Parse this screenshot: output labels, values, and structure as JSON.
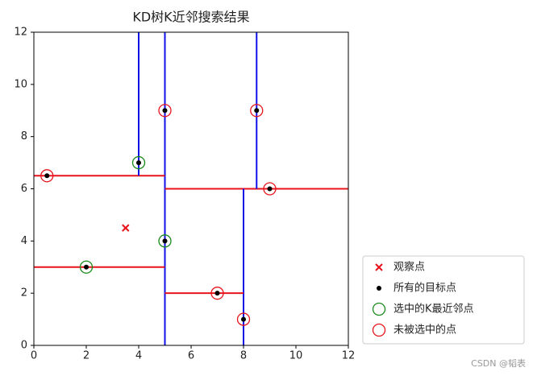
{
  "chart_data": {
    "type": "scatter",
    "title": "KD树K近邻搜索结果",
    "xlim": [
      0,
      12
    ],
    "ylim": [
      0,
      12
    ],
    "xticks": [
      0,
      2,
      4,
      6,
      8,
      10,
      12
    ],
    "yticks": [
      0,
      2,
      4,
      6,
      8,
      10,
      12
    ],
    "legend": "outside-lower-right",
    "series": [
      {
        "name": "观察点",
        "color": "#e8141c",
        "marker": "x",
        "x": [
          3.5
        ],
        "y": [
          4.5
        ]
      },
      {
        "name": "所有的目标点",
        "color": "#000000",
        "marker": "dot",
        "x": [
          0.5,
          2,
          4,
          5,
          5,
          7,
          8,
          8.5,
          9
        ],
        "y": [
          6.5,
          3,
          7,
          9,
          4,
          2,
          1,
          9,
          6
        ]
      },
      {
        "name": "选中的K最近邻点",
        "color": "#1a8a1a",
        "marker": "circle",
        "x": [
          4,
          2,
          5
        ],
        "y": [
          7,
          3,
          4
        ]
      },
      {
        "name": "未被选中的点",
        "color": "#e8141c",
        "marker": "circle",
        "x": [
          0.5,
          5,
          8.5,
          9,
          7,
          8
        ],
        "y": [
          6.5,
          9,
          9,
          6,
          2,
          1
        ]
      }
    ],
    "segments": [
      {
        "color": "#1010e8",
        "x": [
          5,
          5
        ],
        "y": [
          0,
          12
        ]
      },
      {
        "color": "#e8141c",
        "x": [
          0,
          5
        ],
        "y": [
          6.5,
          6.5
        ]
      },
      {
        "color": "#1010e8",
        "x": [
          4,
          4
        ],
        "y": [
          6.5,
          12
        ]
      },
      {
        "color": "#e8141c",
        "x": [
          0,
          5
        ],
        "y": [
          3,
          3
        ]
      },
      {
        "color": "#e8141c",
        "x": [
          5,
          12
        ],
        "y": [
          6,
          6
        ]
      },
      {
        "color": "#1010e8",
        "x": [
          8,
          8
        ],
        "y": [
          0,
          6
        ]
      },
      {
        "color": "#1010e8",
        "x": [
          8.5,
          8.5
        ],
        "y": [
          6,
          12
        ]
      },
      {
        "color": "#e8141c",
        "x": [
          5,
          8
        ],
        "y": [
          2,
          2
        ]
      }
    ]
  },
  "watermark": "CSDN @韬表"
}
